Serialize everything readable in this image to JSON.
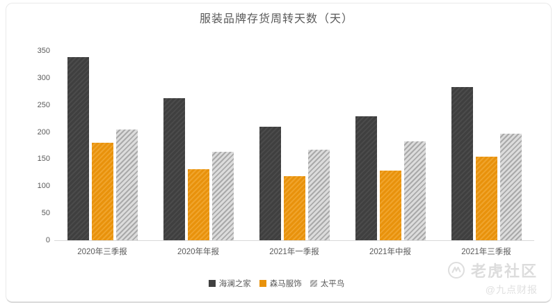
{
  "title": "服装品牌存货周转天数（天）",
  "chart_data": {
    "type": "bar",
    "title": "服装品牌存货周转天数（天）",
    "categories": [
      "2020年三季报",
      "2020年年报",
      "2021年一季报",
      "2021年中报",
      "2021年三季报"
    ],
    "series": [
      {
        "name": "海澜之家",
        "color": "#3f3f3f",
        "values": [
          338,
          262,
          210,
          229,
          283
        ]
      },
      {
        "name": "森马服饰",
        "color": "#e8920c",
        "values": [
          180,
          131,
          118,
          129,
          154
        ]
      },
      {
        "name": "太平鸟",
        "color": "#dcdcdc",
        "values": [
          205,
          164,
          167,
          183,
          197
        ]
      }
    ],
    "xlabel": "",
    "ylabel": "",
    "ylim": [
      0,
      350
    ],
    "yticks": [
      0,
      50,
      100,
      150,
      200,
      250,
      300,
      350
    ],
    "grid": false,
    "hatch": "diagonal",
    "legend_position": "bottom"
  },
  "watermark": {
    "brand": "老虎社区",
    "handle": "@九点财报"
  }
}
